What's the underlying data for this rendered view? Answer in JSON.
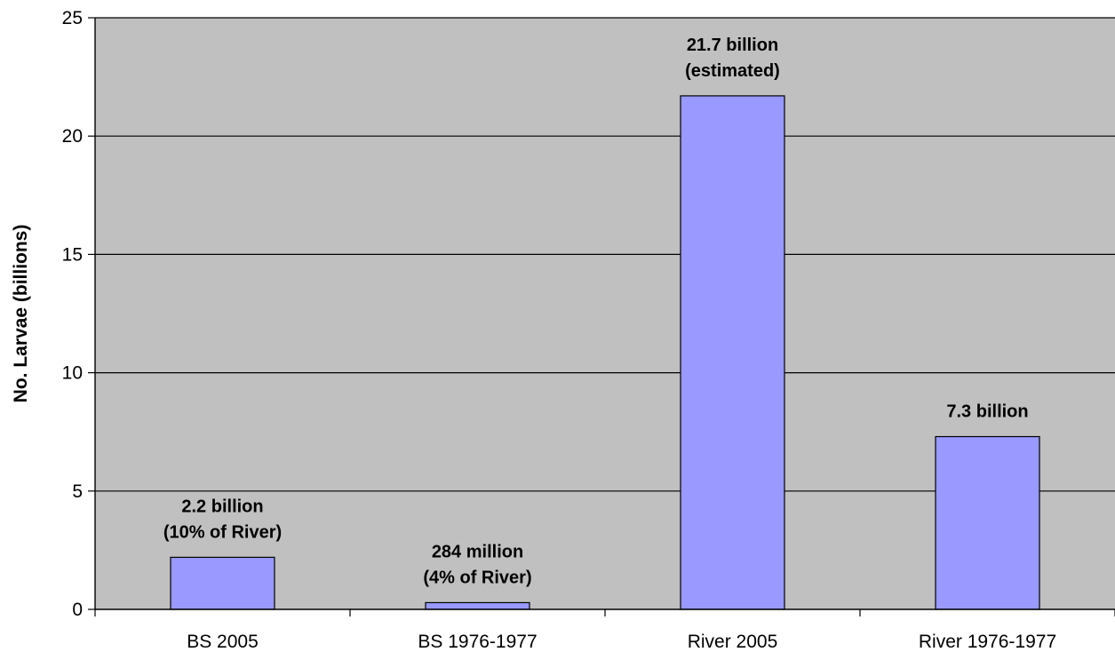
{
  "chart_data": {
    "type": "bar",
    "title": "",
    "xlabel": "",
    "ylabel": "No. Larvae (billions)",
    "ylim": [
      0,
      25
    ],
    "yticks": [
      0,
      5,
      10,
      15,
      20,
      25
    ],
    "grid": true,
    "legend": "none",
    "categories": [
      "BS 2005",
      "BS 1976-1977",
      "River 2005",
      "River 1976-1977"
    ],
    "values": [
      2.2,
      0.284,
      21.7,
      7.3
    ],
    "data_labels": [
      [
        "2.2 billion",
        "(10% of River)"
      ],
      [
        "284 million",
        "(4% of River)"
      ],
      [
        "21.7 billion",
        "(estimated)"
      ],
      [
        "7.3 billion"
      ]
    ],
    "colors": {
      "plot_background": "#c0c0c0",
      "bar_fill": "#9999ff",
      "bar_stroke": "#000000",
      "gridline": "#000000"
    }
  }
}
